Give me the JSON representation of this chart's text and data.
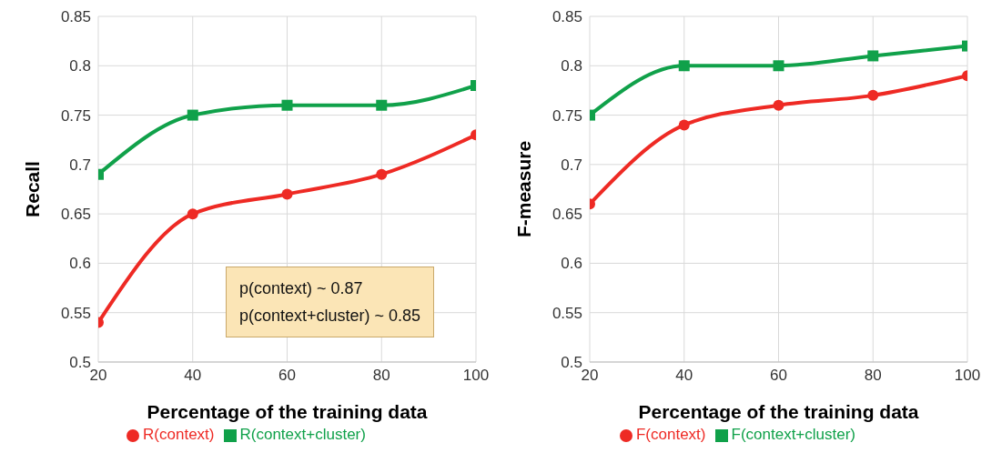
{
  "chart_data": [
    {
      "type": "line",
      "xlabel": "Percentage of the training data",
      "ylabel": "Recall",
      "x": [
        20,
        40,
        60,
        80,
        100
      ],
      "xlim": [
        20,
        100
      ],
      "xticks": [
        20,
        40,
        60,
        80,
        100
      ],
      "ylim": [
        0.5,
        0.85
      ],
      "yticks": [
        0.5,
        0.55,
        0.6,
        0.65,
        0.7,
        0.75,
        0.8,
        0.85
      ],
      "grid": true,
      "legend": "bottom",
      "line_style": "solid",
      "annotations": [
        "p(context) ~ 0.87",
        "p(context+cluster) ~ 0.85"
      ],
      "series": [
        {
          "name": "R(context)",
          "color": "#ee2a24",
          "marker": "circle",
          "values": [
            0.54,
            0.65,
            0.67,
            0.69,
            0.73
          ]
        },
        {
          "name": "R(context+cluster)",
          "color": "#10a14a",
          "marker": "square",
          "values": [
            0.69,
            0.75,
            0.76,
            0.76,
            0.78
          ]
        }
      ]
    },
    {
      "type": "line",
      "xlabel": "Percentage of the training data",
      "ylabel": "F-measure",
      "x": [
        20,
        40,
        60,
        80,
        100
      ],
      "xlim": [
        20,
        100
      ],
      "xticks": [
        20,
        40,
        60,
        80,
        100
      ],
      "ylim": [
        0.5,
        0.85
      ],
      "yticks": [
        0.5,
        0.55,
        0.6,
        0.65,
        0.7,
        0.75,
        0.8,
        0.85
      ],
      "grid": true,
      "legend": "bottom",
      "line_style": "solid",
      "series": [
        {
          "name": "F(context)",
          "color": "#ee2a24",
          "marker": "circle",
          "values": [
            0.66,
            0.74,
            0.76,
            0.77,
            0.79
          ]
        },
        {
          "name": "F(context+cluster)",
          "color": "#10a14a",
          "marker": "square",
          "values": [
            0.75,
            0.8,
            0.8,
            0.81,
            0.82
          ]
        }
      ]
    }
  ]
}
